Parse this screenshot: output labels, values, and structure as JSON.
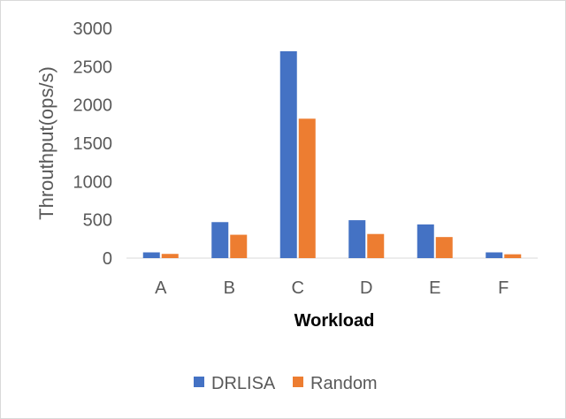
{
  "chart_data": {
    "type": "bar",
    "categories": [
      "A",
      "B",
      "C",
      "D",
      "E",
      "F"
    ],
    "series": [
      {
        "name": "DRLISA",
        "color": "#4472C4",
        "values": [
          75,
          470,
          2700,
          495,
          440,
          75
        ]
      },
      {
        "name": "Random",
        "color": "#ED7D31",
        "values": [
          55,
          305,
          1820,
          315,
          275,
          50
        ]
      }
    ],
    "title": "",
    "xlabel": "Workload",
    "ylabel": "Throuthput(ops/s)",
    "ylim": [
      0,
      3000
    ],
    "yticks": [
      "0",
      "500",
      "1000",
      "1500",
      "2000",
      "2500",
      "3000"
    ],
    "grid": false,
    "legend_position": "bottom"
  }
}
